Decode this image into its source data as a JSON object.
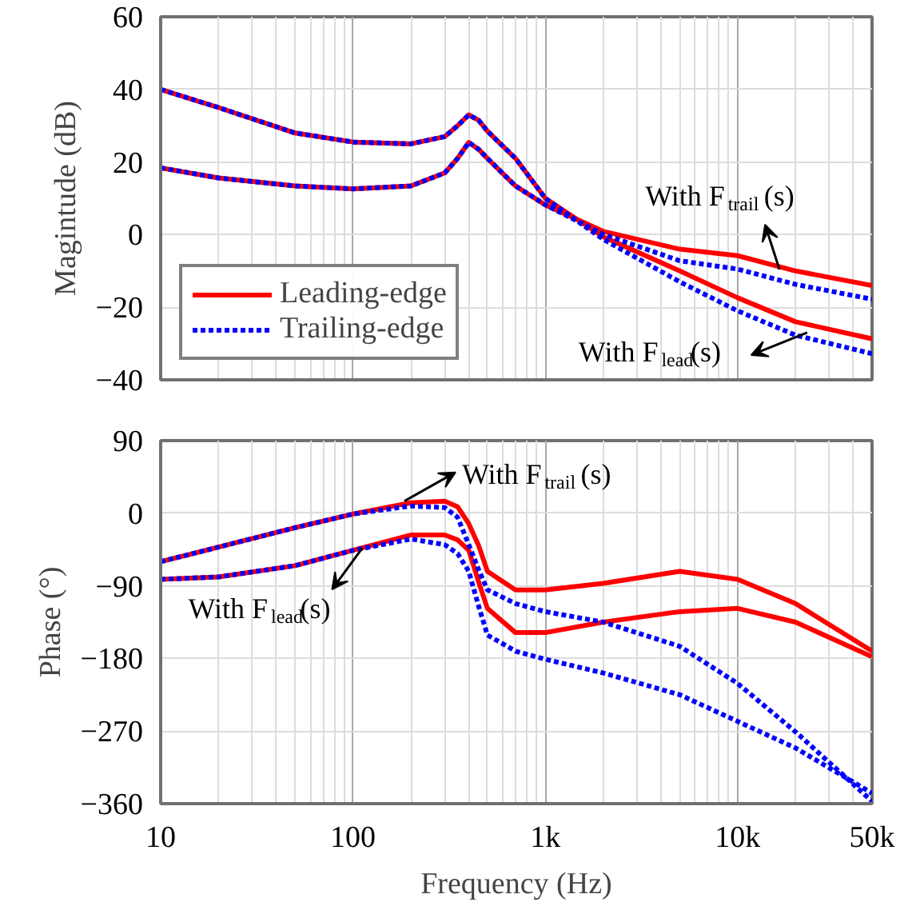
{
  "chart_data": [
    {
      "type": "line",
      "ylabel": "Magintude (dB)",
      "log": "x",
      "xlim": [
        10,
        50000
      ],
      "xticks": [
        10,
        100,
        1000,
        10000,
        50000
      ],
      "ylim": [
        -40,
        60
      ],
      "yticks": [
        -40,
        -20,
        0,
        20,
        40,
        60
      ],
      "tick_labels": "y",
      "grid": true,
      "legend": "bottom left",
      "x": [
        10,
        20,
        50,
        100,
        200,
        300,
        350,
        400,
        450,
        500,
        700,
        1000,
        2000,
        5000,
        10000,
        20000,
        50000
      ],
      "series": [
        {
          "name": "Leading-edge",
          "color": "#ff0000",
          "line_style": "solid",
          "values": [
            40,
            35,
            28,
            25.5,
            25,
            27,
            30,
            33,
            31.5,
            28.5,
            21,
            10,
            -0.6,
            -10,
            -17.4,
            -24,
            -28.7
          ]
        },
        {
          "name": null,
          "color": "#ff0000",
          "line_style": "solid",
          "values": [
            18.4,
            15.6,
            13.4,
            12.6,
            13.4,
            17,
            21,
            25.4,
            23.5,
            21,
            13.4,
            8.2,
            0.9,
            -4,
            -5.8,
            -10,
            -14
          ]
        },
        {
          "name": "Trailing-edge",
          "color": "#0000ff",
          "line_style": "dashed",
          "values": [
            40,
            35,
            28,
            25.5,
            25,
            27,
            30,
            33,
            31.5,
            28.5,
            21,
            10,
            -1.3,
            -13,
            -21,
            -27.7,
            -32.8
          ]
        },
        {
          "name": null,
          "color": "#0000ff",
          "line_style": "dashed",
          "values": [
            18.4,
            15.6,
            13.4,
            12.6,
            13.4,
            17,
            21,
            25.4,
            23.5,
            21,
            13.4,
            8.2,
            0.1,
            -7.2,
            -9.5,
            -13.7,
            -17.8
          ]
        }
      ],
      "annotations": [
        {
          "text": "With F$_{trail}$(s)",
          "x": 16500,
          "y": -9.6
        },
        {
          "text": "With F$_{lead}$(s)",
          "x": 23000,
          "y": -27
        }
      ]
    },
    {
      "type": "line",
      "xlabel": "Frequency (Hz)",
      "ylabel": "Phase (°)",
      "log": "x",
      "xlim": [
        10,
        50000
      ],
      "xticks": [
        10,
        100,
        {
          "value": 1000,
          "label": "1k"
        },
        {
          "value": 10000,
          "label": "10k"
        },
        {
          "value": 50000,
          "label": "50k"
        }
      ],
      "ylim": [
        -360,
        90
      ],
      "yticks": [
        -360,
        -270,
        -180,
        -90,
        0,
        90
      ],
      "grid": true,
      "x": [
        10,
        20,
        50,
        100,
        200,
        300,
        350,
        400,
        450,
        500,
        700,
        1000,
        2000,
        5000,
        10000,
        20000,
        50000
      ],
      "series": [
        {
          "color": "#ff0000",
          "line_style": "solid",
          "values": [
            -60,
            -42,
            -18,
            -1,
            13,
            15,
            8,
            -13,
            -40,
            -72,
            -95,
            -95,
            -87,
            -72,
            -82,
            -112,
            -171
          ]
        },
        {
          "color": "#ff0000",
          "line_style": "solid",
          "values": [
            -82,
            -79,
            -65,
            -46,
            -27,
            -27,
            -33,
            -46,
            -85,
            -118,
            -148,
            -148,
            -135,
            -122,
            -118,
            -135,
            -178
          ]
        },
        {
          "color": "#0000ff",
          "line_style": "dashed",
          "values": [
            -60,
            -42,
            -18,
            -1,
            9,
            7,
            -5,
            -39,
            -70,
            -95,
            -112,
            -122,
            -135,
            -165,
            -211,
            -271,
            -357
          ]
        },
        {
          "color": "#0000ff",
          "line_style": "dashed",
          "values": [
            -82,
            -79,
            -65,
            -46,
            -32,
            -39,
            -50,
            -72,
            -115,
            -151,
            -171,
            -181,
            -198,
            -225,
            -258,
            -291,
            -347
          ]
        }
      ],
      "annotations": [
        {
          "text": "With F$_{trail}$(s)",
          "x": 185,
          "y": 15
        },
        {
          "text": "With F$_{lead}$(s)",
          "x": 112,
          "y": -43
        }
      ]
    }
  ]
}
